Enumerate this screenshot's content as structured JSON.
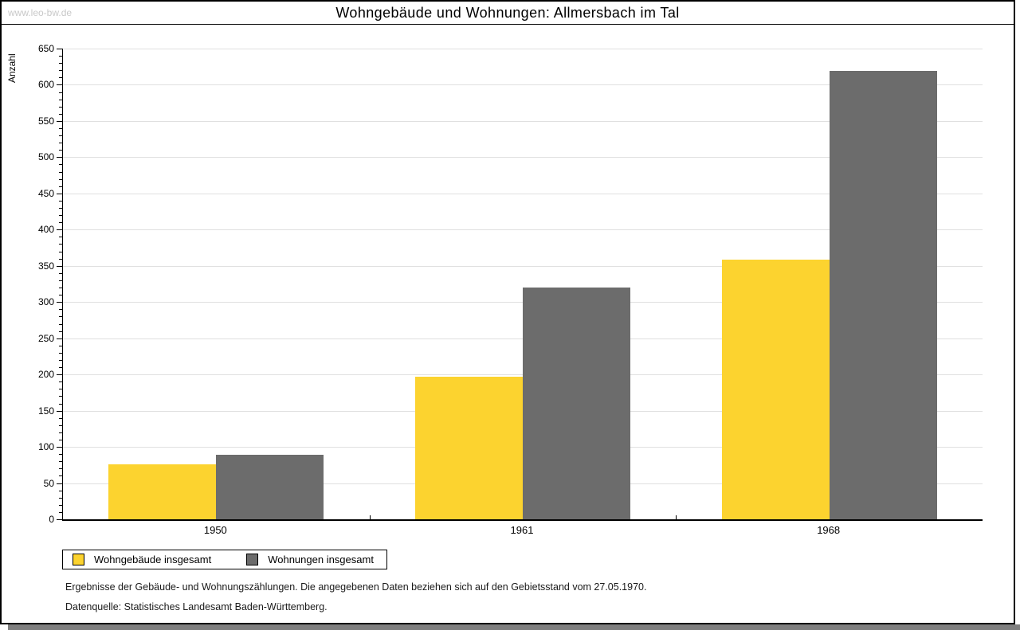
{
  "watermark": "www.leo-bw.de",
  "title": "Wohngebäude und Wohnungen: Allmersbach im Tal",
  "chart_data": {
    "type": "bar",
    "title": "Wohngebäude und Wohnungen: Allmersbach im Tal",
    "xlabel": "",
    "ylabel": "Anzahl",
    "categories": [
      "1950",
      "1961",
      "1968"
    ],
    "series": [
      {
        "name": "Wohngebäude insgesamt",
        "color": "#FCD32F",
        "values": [
          76,
          197,
          359
        ]
      },
      {
        "name": "Wohnungen insgesamt",
        "color": "#6C6C6C",
        "values": [
          89,
          320,
          619
        ]
      }
    ],
    "ylim": [
      0,
      650
    ],
    "ytick_major": 50,
    "ytick_minor": 10,
    "grid": true,
    "gridline_color": "#e0e0e0",
    "legend_position": "bottom-left"
  },
  "footnotes": [
    "Ergebnisse der Gebäude- und Wohnungszählungen. Die angegebenen Daten beziehen sich auf den Gebietsstand vom 27.05.1970.",
    "Datenquelle: Statistisches Landesamt Baden-Württemberg."
  ]
}
